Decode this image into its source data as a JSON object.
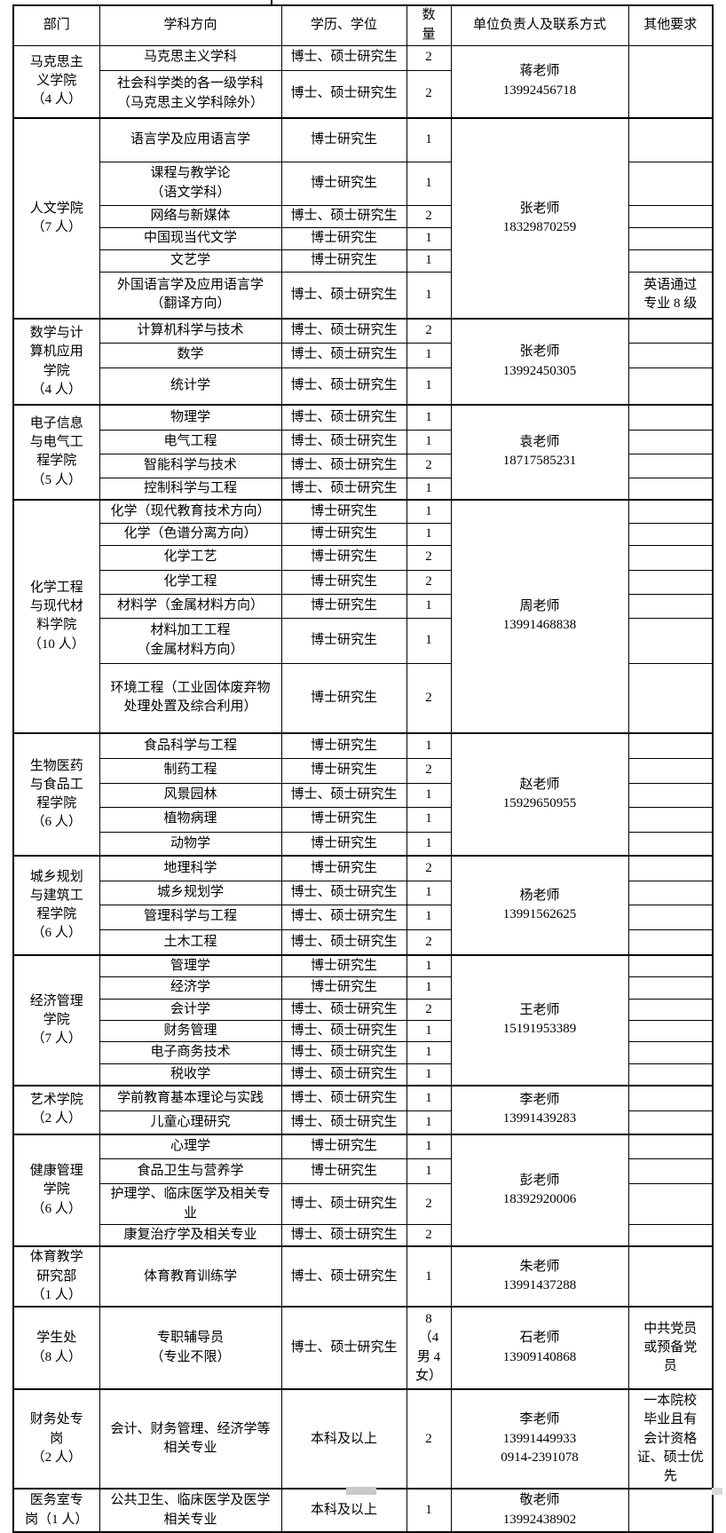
{
  "colors": {
    "border": "#000000",
    "background": "#ffffff",
    "scrollbar": "#c9c9c9"
  },
  "table": {
    "headers": [
      "部门",
      "学科方向",
      "学历、学位",
      "数量",
      "单位负责人及联系方式",
      "其他要求"
    ],
    "sections": [
      {
        "department": "马克思主\n义学院\n（4 人）",
        "contact": "蒋老师\n13992456718",
        "other_merged": "",
        "rows": [
          {
            "major": "马克思主义学科",
            "degree": "博士、硕士研究生",
            "count": "2"
          },
          {
            "major": "社会科学类的各一级学科\n（马克思主义学科除外）",
            "degree": "博士、硕士研究生",
            "count": "2"
          }
        ]
      },
      {
        "department": "人文学院\n（7 人）",
        "contact": "张老师\n18329870259",
        "rows": [
          {
            "major": "语言学及应用语言学",
            "degree": "博士研究生",
            "count": "1"
          },
          {
            "major": "课程与教学论\n（语文学科）",
            "degree": "博士研究生",
            "count": "1"
          },
          {
            "major": "网络与新媒体",
            "degree": "博士、硕士研究生",
            "count": "2"
          },
          {
            "major": "中国现当代文学",
            "degree": "博士研究生",
            "count": "1"
          },
          {
            "major": "文艺学",
            "degree": "博士研究生",
            "count": "1"
          },
          {
            "major": "外国语言学及应用语言学\n（翻译方向）",
            "degree": "博士、硕士研究生",
            "count": "1",
            "other": "英语通过\n专业 8 级"
          }
        ]
      },
      {
        "department": "数学与计\n算机应用\n学院\n（4 人）",
        "contact": "张老师\n13992450305",
        "rows": [
          {
            "major": "计算机科学与技术",
            "degree": "博士、硕士研究生",
            "count": "2"
          },
          {
            "major": "数学",
            "degree": "博士、硕士研究生",
            "count": "1"
          },
          {
            "major": "统计学",
            "degree": "博士、硕士研究生",
            "count": "1"
          }
        ]
      },
      {
        "department": "电子信息\n与电气工\n程学院\n（5 人）",
        "contact": "袁老师\n18717585231",
        "rows": [
          {
            "major": "物理学",
            "degree": "博士、硕士研究生",
            "count": "1"
          },
          {
            "major": "电气工程",
            "degree": "博士、硕士研究生",
            "count": "1"
          },
          {
            "major": "智能科学与技术",
            "degree": "博士、硕士研究生",
            "count": "2"
          },
          {
            "major": "控制科学与工程",
            "degree": "博士、硕士研究生",
            "count": "1"
          }
        ]
      },
      {
        "department": "化学工程\n与现代材\n料学院\n（10 人）",
        "contact": "周老师\n13991468838",
        "rows": [
          {
            "major": "化学（现代教育技术方向）",
            "degree": "博士研究生",
            "count": "1"
          },
          {
            "major": "化学（色谱分离方向）",
            "degree": "博士研究生",
            "count": "1"
          },
          {
            "major": "化学工艺",
            "degree": "博士研究生",
            "count": "2"
          },
          {
            "major": "化学工程",
            "degree": "博士研究生",
            "count": "2"
          },
          {
            "major": "材料学（金属材料方向）",
            "degree": "博士研究生",
            "count": "1"
          },
          {
            "major": "材料加工工程\n（金属材料方向）",
            "degree": "博士研究生",
            "count": "1"
          },
          {
            "major": "环境工程（工业固体废弃物\n处理处置及综合利用）",
            "degree": "博士研究生",
            "count": "2"
          }
        ]
      },
      {
        "department": "生物医药\n与食品工\n程学院\n（6 人）",
        "contact": "赵老师\n15929650955",
        "rows": [
          {
            "major": "食品科学与工程",
            "degree": "博士研究生",
            "count": "1"
          },
          {
            "major": "制药工程",
            "degree": "博士研究生",
            "count": "2"
          },
          {
            "major": "风景园林",
            "degree": "博士、硕士研究生",
            "count": "1"
          },
          {
            "major": "植物病理",
            "degree": "博士研究生",
            "count": "1"
          },
          {
            "major": "动物学",
            "degree": "博士研究生",
            "count": "1"
          }
        ]
      },
      {
        "department": "城乡规划\n与建筑工\n程学院\n（6 人）",
        "contact": "杨老师\n13991562625",
        "rows": [
          {
            "major": "地理科学",
            "degree": "博士研究生",
            "count": "2"
          },
          {
            "major": "城乡规划学",
            "degree": "博士、硕士研究生",
            "count": "1"
          },
          {
            "major": "管理科学与工程",
            "degree": "博士、硕士研究生",
            "count": "1"
          },
          {
            "major": "土木工程",
            "degree": "博士、硕士研究生",
            "count": "2"
          }
        ]
      },
      {
        "department": "经济管理\n学院\n（7 人）",
        "contact": "王老师\n15191953389",
        "rows": [
          {
            "major": "管理学",
            "degree": "博士研究生",
            "count": "1"
          },
          {
            "major": "经济学",
            "degree": "博士研究生",
            "count": "1"
          },
          {
            "major": "会计学",
            "degree": "博士、硕士研究生",
            "count": "2"
          },
          {
            "major": "财务管理",
            "degree": "博士、硕士研究生",
            "count": "1"
          },
          {
            "major": "电子商务技术",
            "degree": "博士、硕士研究生",
            "count": "1"
          },
          {
            "major": "税收学",
            "degree": "博士、硕士研究生",
            "count": "1"
          }
        ]
      },
      {
        "department": "艺术学院\n（2 人）",
        "contact": "李老师\n13991439283",
        "rows": [
          {
            "major": "学前教育基本理论与实践",
            "degree": "博士、硕士研究生",
            "count": "1"
          },
          {
            "major": "儿童心理研究",
            "degree": "博士、硕士研究生",
            "count": "1"
          }
        ]
      },
      {
        "department": "健康管理\n学院\n（6 人）",
        "contact": "彭老师\n18392920006",
        "rows": [
          {
            "major": "心理学",
            "degree": "博士研究生",
            "count": "1"
          },
          {
            "major": "食品卫生与营养学",
            "degree": "博士研究生",
            "count": "1"
          },
          {
            "major": "护理学、临床医学及相关专\n业",
            "degree": "博士、硕士研究生",
            "count": "2"
          },
          {
            "major": "康复治疗学及相关专业",
            "degree": "博士、硕士研究生",
            "count": "2"
          }
        ]
      },
      {
        "department": "体育教学\n研究部\n（1 人）",
        "contact": "朱老师\n13991437288",
        "rows": [
          {
            "major": "体育教育训练学",
            "degree": "博士、硕士研究生",
            "count": "1"
          }
        ]
      },
      {
        "department": "学生处\n（8 人）",
        "contact": "石老师\n13909140868",
        "rows": [
          {
            "major": "专职辅导员\n（专业不限）",
            "degree": "博士、硕士研究生",
            "count": "8\n（4\n男 4\n女）",
            "other": "中共党员\n或预备党\n员"
          }
        ]
      },
      {
        "department": "财务处专\n岗\n（2 人）",
        "contact": "李老师\n13991449933\n0914-2391078",
        "rows": [
          {
            "major": "会计、财务管理、经济学等\n相关专业",
            "degree": "本科及以上",
            "count": "2",
            "other": "一本院校\n毕业且有\n会计资格\n证、硕士优\n先"
          }
        ]
      },
      {
        "department": "医务室专\n岗（1 人）",
        "contact": "敬老师\n13992438902",
        "rows": [
          {
            "major": "公共卫生、临床医学及医学\n相关专业",
            "degree": "本科及以上",
            "count": "1"
          }
        ]
      }
    ]
  }
}
